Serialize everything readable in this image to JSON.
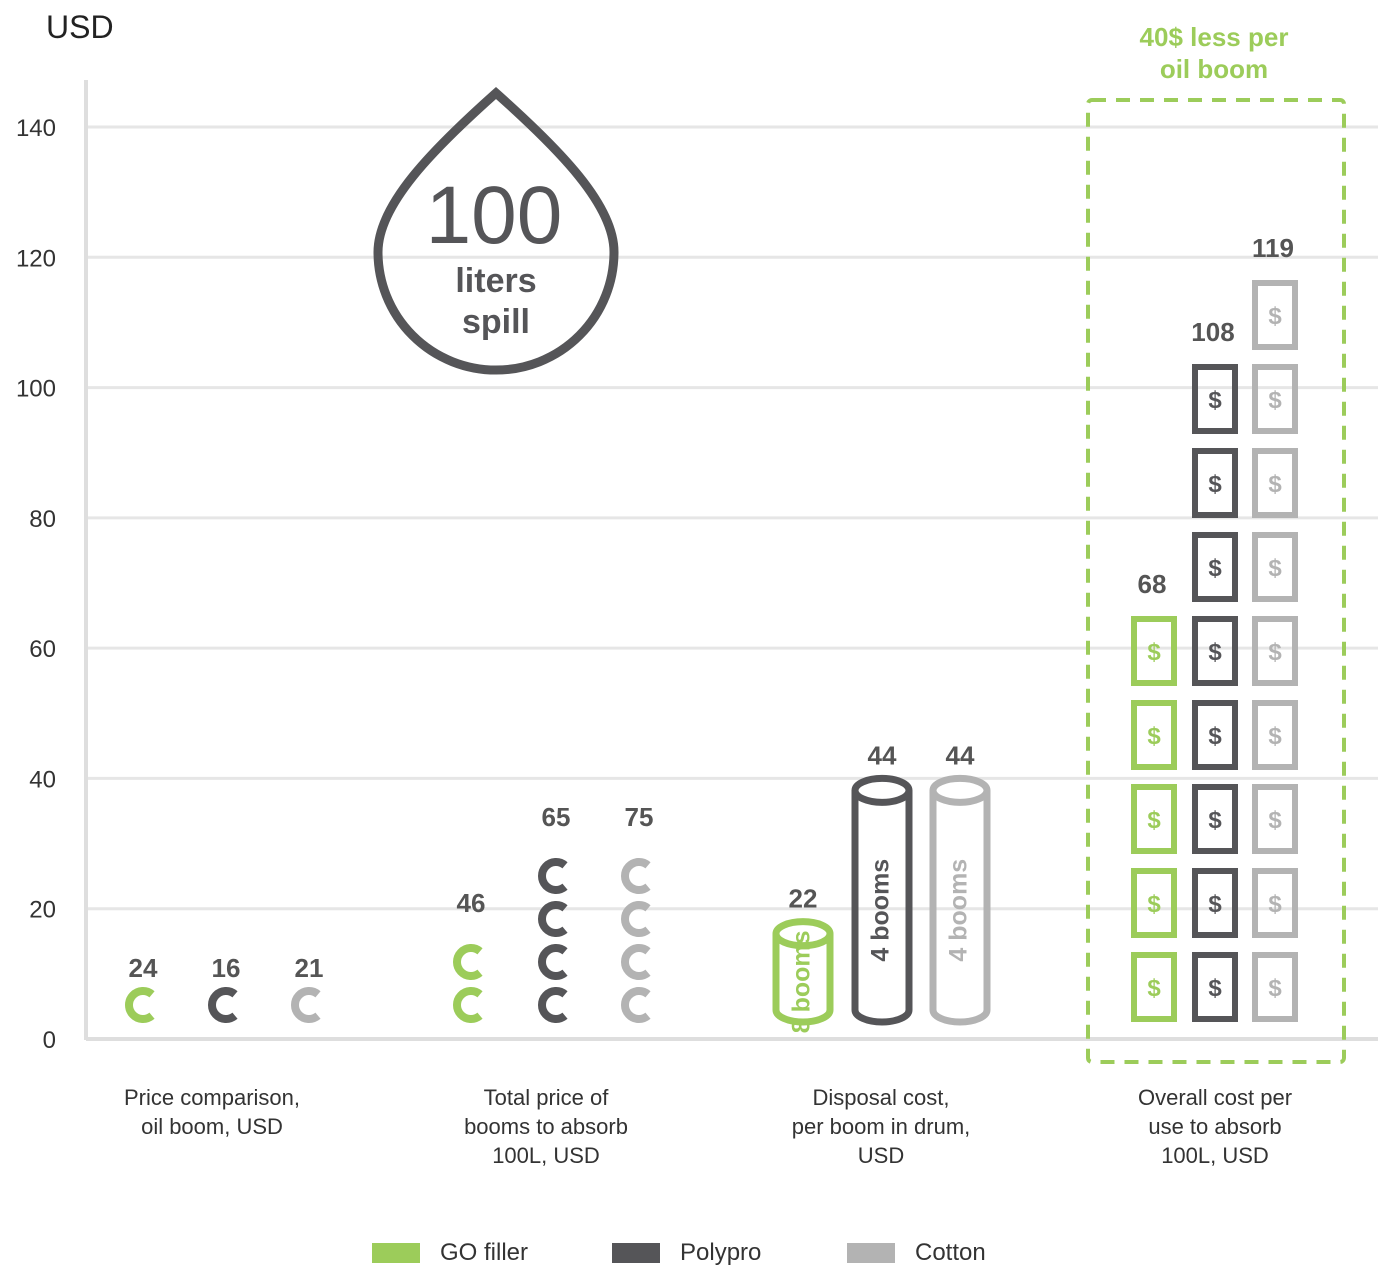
{
  "colors": {
    "go": "#9ccc5a",
    "polypro": "#555558",
    "cotton": "#b3b3b3",
    "grid": "#e6e6e6",
    "axis": "#dedede"
  },
  "chart_data": {
    "type": "bar",
    "unit_label": "USD",
    "ylim": [
      0,
      140
    ],
    "yticks": [
      0,
      20,
      40,
      60,
      80,
      100,
      120,
      140
    ],
    "grid": true,
    "legend_position": "bottom",
    "categories": [
      [
        "Price comparison,",
        "oil boom, USD"
      ],
      [
        "Total price of",
        "booms to absorb",
        "100L, USD"
      ],
      [
        "Disposal cost,",
        "per boom in drum,",
        "USD"
      ],
      [
        "Overall cost per",
        "use to absorb",
        "100L, USD"
      ]
    ],
    "series": [
      {
        "name": "GO filler",
        "values": [
          24,
          46,
          22,
          68
        ]
      },
      {
        "name": "Polypro",
        "values": [
          16,
          65,
          44,
          108
        ]
      },
      {
        "name": "Cotton",
        "values": [
          21,
          75,
          44,
          119
        ]
      }
    ],
    "annotations": {
      "drop_number": "100",
      "drop_text_1": "liters",
      "drop_text_2": "spill",
      "highlight_1": "40$ less per",
      "highlight_2": "oil boom",
      "tube_labels": [
        "8 booms",
        "4 booms",
        "4 booms"
      ],
      "dollar_symbol": "$",
      "icon_counts": [
        [
          1,
          1,
          1
        ],
        [
          2,
          4,
          4
        ],
        [
          1,
          1,
          1
        ],
        [
          5,
          8,
          9
        ]
      ]
    }
  }
}
